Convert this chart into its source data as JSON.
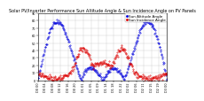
{
  "title": "Solar PV/Inverter Performance Sun Altitude Angle & Sun Incidence Angle on PV Panels",
  "blue_label": "Sun Altitude Angle",
  "red_label": "Sun Incidence Angle",
  "y_min": 0,
  "y_max": 90,
  "y_ticks": [
    0,
    10,
    20,
    30,
    40,
    50,
    60,
    70,
    80,
    90
  ],
  "blue_color": "#0000dd",
  "red_color": "#dd0000",
  "background_color": "#ffffff",
  "grid_color": "#cccccc",
  "title_fontsize": 3.5,
  "axis_fontsize": 2.5,
  "legend_fontsize": 3.0,
  "marker_size": 0.7,
  "num_points": 300,
  "num_days": 3
}
